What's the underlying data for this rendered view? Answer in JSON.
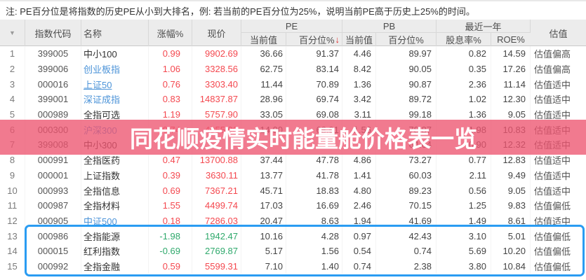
{
  "note": "注: PE百分位是将指数的历史PE从小到大排名，例: 若当前的PE百分位为25%，说明当前PE高于历史上25%的时间。",
  "watermark": {
    "text": "同花顺疫情实时能量舱价格表一览"
  },
  "colors": {
    "up": "#f4484f",
    "down": "#2fa96c",
    "link": "#4b93d8",
    "watermark_band": "rgba(237,84,112,0.78)",
    "selection_border": "#2a9cf2"
  },
  "header": {
    "filter_icon": "▼",
    "col_index_code": "指数代码",
    "col_name": "名称",
    "col_change": "涨幅%",
    "col_price": "现价",
    "group_pe": "PE",
    "group_pb": "PB",
    "group_year": "最近一年",
    "col_pe_current": "当前值",
    "col_pe_percentile": "百分位%",
    "sort_arrow": "↓",
    "col_pb_current": "当前值",
    "col_pb_percentile": "百分位%",
    "col_dividend": "股息率%",
    "col_roe": "ROE%",
    "col_valuation": "估值"
  },
  "rows": [
    {
      "num": "1",
      "code": "399005",
      "name": "中小100",
      "link": false,
      "underline": false,
      "dir": "up",
      "change": "0.99",
      "price": "9902.69",
      "pe": "36.66",
      "pe_pct": "91.37",
      "pb": "4.46",
      "pb_pct": "89.97",
      "div": "0.82",
      "roe": "14.59",
      "val": "估值偏高"
    },
    {
      "num": "2",
      "code": "399006",
      "name": "创业板指",
      "link": true,
      "underline": false,
      "dir": "up",
      "change": "1.06",
      "price": "3328.56",
      "pe": "62.75",
      "pe_pct": "83.14",
      "pb": "8.42",
      "pb_pct": "90.05",
      "div": "0.35",
      "roe": "17.26",
      "val": "估值偏高"
    },
    {
      "num": "3",
      "code": "000016",
      "name": "上证50",
      "link": true,
      "underline": true,
      "dir": "up",
      "change": "0.76",
      "price": "3303.40",
      "pe": "11.44",
      "pe_pct": "70.89",
      "pb": "1.36",
      "pb_pct": "90.87",
      "div": "2.36",
      "roe": "11.14",
      "val": "估值适中"
    },
    {
      "num": "4",
      "code": "399001",
      "name": "深证成指",
      "link": true,
      "underline": false,
      "dir": "up",
      "change": "0.83",
      "price": "14837.87",
      "pe": "28.96",
      "pe_pct": "69.74",
      "pb": "3.42",
      "pb_pct": "89.72",
      "div": "1.02",
      "roe": "12.30",
      "val": "估值适中"
    },
    {
      "num": "5",
      "code": "000989",
      "name": "全指可选",
      "link": false,
      "underline": false,
      "dir": "up",
      "change": "1.19",
      "price": "5757.90",
      "pe": "33.05",
      "pe_pct": "69.08",
      "pb": "3.11",
      "pb_pct": "99.18",
      "div": "1.36",
      "roe": "9.05",
      "val": "估值适中"
    },
    {
      "num": "6",
      "code": "000300",
      "name": "沪深300",
      "link": true,
      "underline": false,
      "dir": "up",
      "change": "0.74",
      "price": "4955.06",
      "pe": "14.00",
      "pe_pct": "68.91",
      "pb": "1.56",
      "pb_pct": "78.87",
      "div": "1.98",
      "roe": "10.83",
      "val": "估值适中"
    },
    {
      "num": "7",
      "code": "399008",
      "name": "中小300",
      "link": false,
      "underline": false,
      "dir": "up",
      "change": "",
      "price": "",
      "pe": "",
      "pe_pct": "",
      "pb": "",
      "pb_pct": "64.64",
      "div": "0.90",
      "roe": "12.32",
      "val": "估值适中"
    },
    {
      "num": "8",
      "code": "000991",
      "name": "全指医药",
      "link": false,
      "underline": false,
      "dir": "up",
      "change": "0.47",
      "price": "13700.88",
      "pe": "37.44",
      "pe_pct": "47.78",
      "pb": "4.86",
      "pb_pct": "73.27",
      "div": "0.77",
      "roe": "12.83",
      "val": "估值适中"
    },
    {
      "num": "9",
      "code": "000001",
      "name": "上证指数",
      "link": false,
      "underline": false,
      "dir": "up",
      "change": "0.39",
      "price": "3630.11",
      "pe": "13.77",
      "pe_pct": "41.78",
      "pb": "1.41",
      "pb_pct": "60.03",
      "div": "2.11",
      "roe": "9.49",
      "val": "估值适中"
    },
    {
      "num": "10",
      "code": "000993",
      "name": "全指信息",
      "link": false,
      "underline": false,
      "dir": "up",
      "change": "0.69",
      "price": "7367.21",
      "pe": "45.71",
      "pe_pct": "18.83",
      "pb": "4.80",
      "pb_pct": "89.23",
      "div": "0.56",
      "roe": "9.05",
      "val": "估值适中"
    },
    {
      "num": "11",
      "code": "000987",
      "name": "全指材料",
      "link": false,
      "underline": false,
      "dir": "up",
      "change": "1.55",
      "price": "4499.74",
      "pe": "17.03",
      "pe_pct": "16.69",
      "pb": "2.46",
      "pb_pct": "70.15",
      "div": "1.25",
      "roe": "9.83",
      "val": "估值偏低"
    },
    {
      "num": "12",
      "code": "000905",
      "name": "中证500",
      "link": true,
      "underline": true,
      "dir": "up",
      "change": "0.18",
      "price": "7286.03",
      "pe": "20.47",
      "pe_pct": "8.63",
      "pb": "1.94",
      "pb_pct": "41.69",
      "div": "1.49",
      "roe": "8.61",
      "val": "估值适中"
    },
    {
      "num": "13",
      "code": "000986",
      "name": "全指能源",
      "link": false,
      "underline": false,
      "dir": "down",
      "change": "-1.98",
      "price": "1942.47",
      "pe": "10.16",
      "pe_pct": "4.28",
      "pb": "0.97",
      "pb_pct": "42.43",
      "div": "3.10",
      "roe": "5.01",
      "val": "估值偏低"
    },
    {
      "num": "14",
      "code": "000015",
      "name": "红利指数",
      "link": false,
      "underline": false,
      "dir": "down",
      "change": "-0.69",
      "price": "2769.87",
      "pe": "5.17",
      "pe_pct": "1.56",
      "pb": "0.54",
      "pb_pct": "0.74",
      "div": "5.69",
      "roe": "10.20",
      "val": "估值偏低"
    },
    {
      "num": "15",
      "code": "000992",
      "name": "全指金融",
      "link": false,
      "underline": false,
      "dir": "up",
      "change": "0.59",
      "price": "5599.31",
      "pe": "7.10",
      "pe_pct": "1.40",
      "pb": "0.74",
      "pb_pct": "2.38",
      "div": "3.80",
      "roe": "10.84",
      "val": "估值偏低"
    }
  ]
}
